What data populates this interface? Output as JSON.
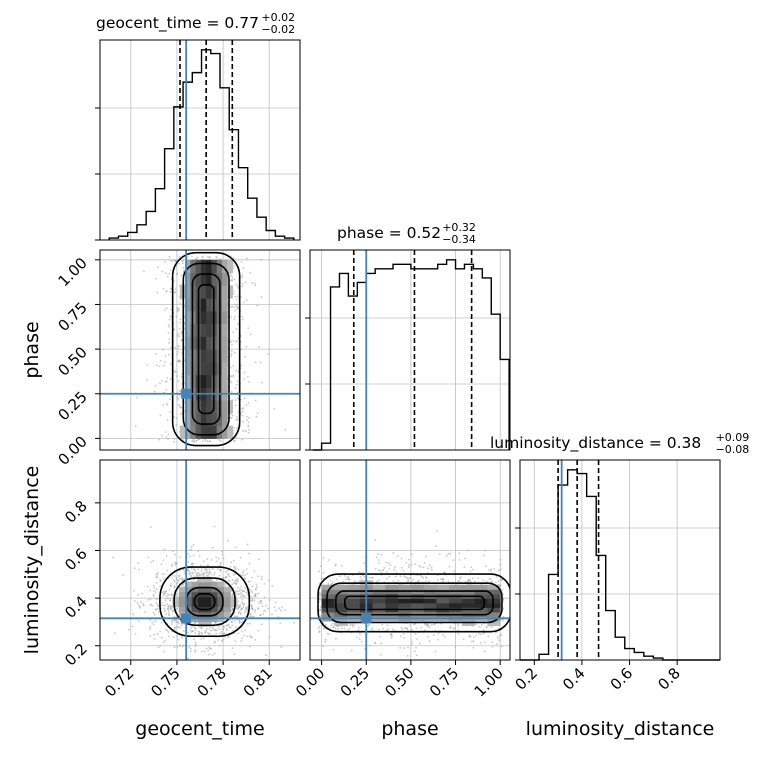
{
  "colors": {
    "truth": "#4682b4",
    "hist": "#000000",
    "grid": "#c0c0c0",
    "quantile": "#000000"
  },
  "chart_data": {
    "type": "corner",
    "parameters": [
      "geocent_time",
      "phase",
      "luminosity_distance"
    ],
    "truths": {
      "geocent_time": 0.756,
      "phase": 0.25,
      "luminosity_distance": 0.315
    },
    "titles": [
      {
        "param": "geocent_time",
        "label": "geocent_time = ",
        "median": "0.77",
        "plus": "+0.02",
        "minus": "−0.02"
      },
      {
        "param": "phase",
        "label": "phase = ",
        "median": "0.52",
        "plus": "+0.32",
        "minus": "−0.34"
      },
      {
        "param": "luminosity_distance",
        "label": "luminosity_distance = ",
        "median": "0.38",
        "plus": "+0.09",
        "minus": "−0.08"
      }
    ],
    "axis_labels": {
      "x": [
        "geocent_time",
        "phase",
        "luminosity_distance"
      ],
      "y": [
        "phase",
        "luminosity_distance"
      ]
    },
    "ranges": {
      "geocent_time": [
        0.7,
        0.83
      ],
      "phase": [
        -0.065,
        1.055
      ],
      "luminosity_distance": [
        0.14,
        0.98
      ]
    },
    "ticks": {
      "geocent_time": [
        "0.72",
        "0.75",
        "0.78",
        "0.81"
      ],
      "phase": [
        "0.00",
        "0.25",
        "0.50",
        "0.75",
        "1.00"
      ],
      "luminosity_distance": [
        "0.2",
        "0.4",
        "0.6",
        "0.8"
      ]
    },
    "quantiles": {
      "geocent_time": [
        0.752,
        0.769,
        0.786
      ],
      "phase": [
        0.18,
        0.52,
        0.84
      ],
      "luminosity_distance": [
        0.3,
        0.38,
        0.47
      ]
    },
    "histograms": {
      "geocent_time": {
        "edges": [
          0.706,
          0.712,
          0.718,
          0.724,
          0.73,
          0.736,
          0.742,
          0.748,
          0.754,
          0.76,
          0.766,
          0.772,
          0.778,
          0.784,
          0.79,
          0.796,
          0.802,
          0.808,
          0.814,
          0.82,
          0.826
        ],
        "counts": [
          1,
          2,
          4,
          8,
          15,
          27,
          48,
          70,
          83,
          88,
          100,
          98,
          80,
          58,
          38,
          22,
          12,
          5,
          2,
          1
        ]
      },
      "phase": {
        "edges": [
          -0.05,
          0.0,
          0.05,
          0.1,
          0.15,
          0.2,
          0.25,
          0.3,
          0.35,
          0.4,
          0.45,
          0.5,
          0.55,
          0.6,
          0.65,
          0.7,
          0.75,
          0.8,
          0.85,
          0.9,
          0.95,
          1.0,
          1.05
        ],
        "counts": [
          0,
          3,
          72,
          78,
          68,
          74,
          78,
          80,
          80,
          82,
          82,
          80,
          80,
          80,
          82,
          84,
          80,
          82,
          80,
          76,
          60,
          40
        ]
      },
      "luminosity_distance": {
        "edges": [
          0.14,
          0.18,
          0.22,
          0.26,
          0.3,
          0.34,
          0.38,
          0.42,
          0.46,
          0.5,
          0.54,
          0.58,
          0.62,
          0.66,
          0.7,
          0.74,
          0.78,
          0.82,
          0.86,
          0.9,
          0.94,
          0.98
        ],
        "counts": [
          0,
          0,
          3,
          45,
          92,
          100,
          98,
          86,
          55,
          26,
          12,
          6,
          4,
          2,
          1,
          0,
          0,
          0,
          0,
          0,
          0
        ]
      }
    },
    "density_2d": [
      {
        "x": "geocent_time",
        "y": "phase",
        "center": [
          0.769,
          0.5
        ],
        "sigma": [
          0.009,
          0.28
        ],
        "shape": "uniform-y"
      },
      {
        "x": "geocent_time",
        "y": "luminosity_distance",
        "center": [
          0.768,
          0.385
        ],
        "sigma": [
          0.011,
          0.055
        ],
        "shape": "gaussian"
      },
      {
        "x": "phase",
        "y": "luminosity_distance",
        "center": [
          0.52,
          0.38
        ],
        "sigma": [
          0.28,
          0.05
        ],
        "shape": "uniform-x"
      }
    ]
  }
}
